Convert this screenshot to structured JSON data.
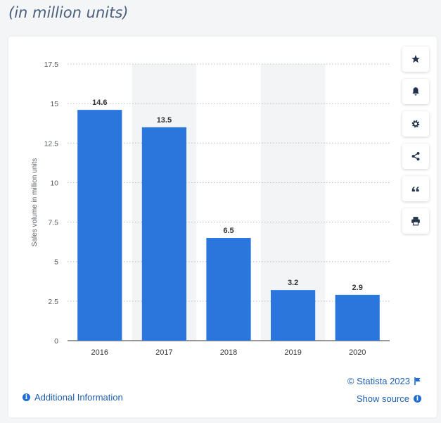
{
  "header": {
    "subtitle": "(in million units)"
  },
  "chart_data": {
    "type": "bar",
    "categories": [
      "2016",
      "2017",
      "2018",
      "2019",
      "2020"
    ],
    "values": [
      14.6,
      13.5,
      6.5,
      3.2,
      2.9
    ],
    "data_labels": [
      "14.6",
      "13.5",
      "6.5",
      "3.2",
      "2.9"
    ],
    "ylabel": "Sales volume in million units",
    "xlabel": "",
    "ylim": [
      0,
      17.5
    ],
    "yticks": [
      0,
      2.5,
      5,
      7.5,
      10,
      12.5,
      15,
      17.5
    ],
    "ytick_labels": [
      "0",
      "2.5",
      "5",
      "7.5",
      "10",
      "12.5",
      "15",
      "17.5"
    ],
    "grid": true,
    "bar_color": "#2a76dd",
    "alt_column_shading": true
  },
  "toolbar": {
    "icons": [
      "star-icon",
      "bell-icon",
      "gear-icon",
      "share-icon",
      "quote-icon",
      "print-icon"
    ]
  },
  "footer": {
    "additional_info": "Additional Information",
    "copyright": "© Statista 2023",
    "show_source": "Show source"
  },
  "colors": {
    "accent": "#1f5fae",
    "bar": "#2a76dd"
  }
}
